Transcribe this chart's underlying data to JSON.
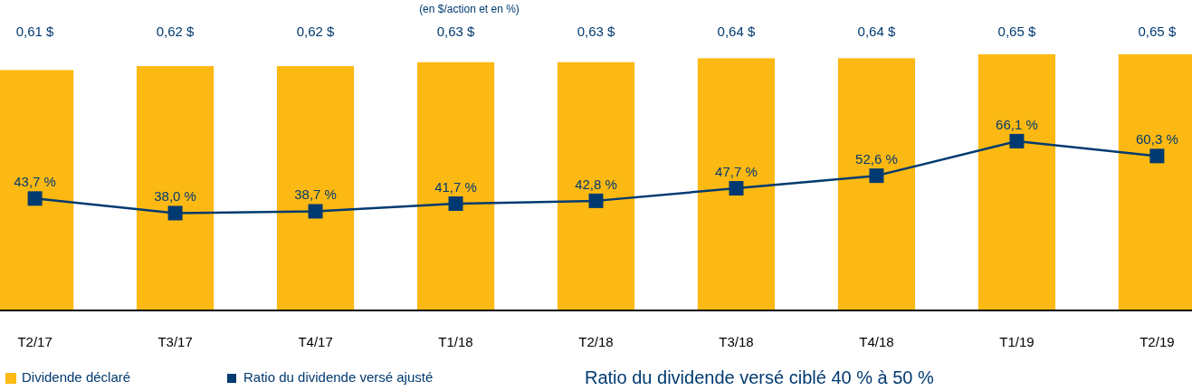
{
  "chart_data": {
    "type": "bar",
    "title": "(en $/action et en %)",
    "categories": [
      "T2/17",
      "T3/17",
      "T4/17",
      "T1/18",
      "T2/18",
      "T3/18",
      "T4/18",
      "T1/19",
      "T2/19"
    ],
    "series": [
      {
        "name": "Dividende déclaré",
        "color": "#fdb913",
        "values": [
          0.61,
          0.62,
          0.62,
          0.63,
          0.63,
          0.64,
          0.64,
          0.65,
          0.65
        ],
        "value_labels": [
          "0,61 $",
          "0,62 $",
          "0,62 $",
          "0,63 $",
          "0,63 $",
          "0,64 $",
          "0,64 $",
          "0,65 $",
          "0,65 $"
        ]
      },
      {
        "name": "Ratio du dividende versé ajusté",
        "type": "line",
        "axis": "y2",
        "color": "#003a70",
        "marker": "square",
        "values": [
          43.7,
          38.0,
          38.7,
          41.7,
          42.8,
          47.7,
          52.6,
          66.1,
          60.3
        ],
        "value_labels": [
          "43,7 %",
          "38,0 %",
          "38,7 %",
          "41,7 %",
          "42,8 %",
          "47,7 %",
          "52,6 %",
          "66,1 %",
          "60,3 %"
        ]
      }
    ],
    "ylim": [
      0,
      0.65
    ],
    "y2lim": [
      0,
      100
    ],
    "tick_labels": "x",
    "legend": "bottom",
    "annotations": [
      "Ratio du dividende versé ciblé 40 % à 50 %"
    ]
  }
}
